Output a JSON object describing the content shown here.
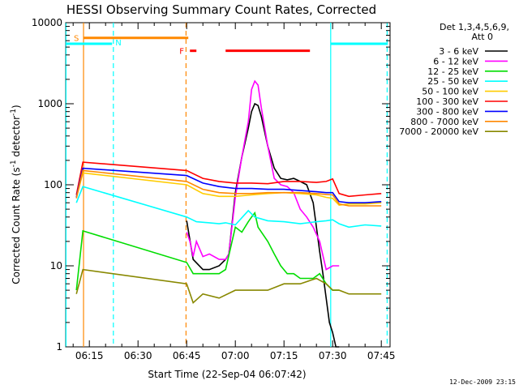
{
  "chart_data": {
    "type": "line",
    "title": "HESSI Observing Summary Count Rates, Corrected",
    "xlabel": "Start Time (22-Sep-04 06:07:42)",
    "ylabel_main": "Corrected Count Rate (s",
    "ylabel_sup1": "-1",
    "ylabel_mid": " detector",
    "ylabel_sup2": "-1",
    "ylabel_end": ")",
    "x_ticks": [
      "06:15",
      "06:30",
      "06:45",
      "07:00",
      "07:15",
      "07:30",
      "07:45"
    ],
    "x_tick_values": [
      15,
      30,
      45,
      60,
      75,
      90,
      105
    ],
    "y_ticks": [
      "1",
      "10",
      "100",
      "1000",
      "10000"
    ],
    "xlim": [
      7.7,
      107.7
    ],
    "ylim": [
      1,
      10000
    ],
    "yscale": "log",
    "legend_header_line1": "Det 1,3,4,5,6,9,",
    "legend_header_line2": "Att 0",
    "legend_position": "right",
    "timestamp": "12-Dec-2009 23:15",
    "flags": {
      "s": "S",
      "n": "N",
      "f": "F"
    },
    "series": [
      {
        "name": "3 - 6 keV",
        "color": "#000000",
        "x": [
          45,
          47,
          50,
          52,
          55,
          57,
          58,
          60,
          62,
          64,
          65,
          66,
          67,
          68,
          70,
          72,
          74,
          76,
          78,
          80,
          82,
          84,
          85,
          86,
          87,
          88,
          89,
          90,
          91,
          92
        ],
        "y": [
          36,
          12,
          9,
          9,
          10,
          12,
          14,
          80,
          220,
          500,
          800,
          1000,
          950,
          700,
          300,
          160,
          120,
          115,
          120,
          110,
          100,
          60,
          30,
          15,
          8,
          4,
          2,
          1.5,
          1,
          1
        ]
      },
      {
        "name": "6 - 12 keV",
        "color": "#ff00ff",
        "x": [
          45,
          46,
          47,
          48,
          50,
          52,
          55,
          57,
          58,
          60,
          62,
          64,
          65,
          66,
          67,
          68,
          70,
          72,
          74,
          76,
          78,
          80,
          82,
          84,
          86,
          88,
          90,
          92
        ],
        "y": [
          26,
          20,
          13,
          20,
          13,
          14,
          12,
          12,
          14,
          70,
          220,
          600,
          1500,
          1900,
          1700,
          900,
          300,
          120,
          100,
          95,
          80,
          50,
          40,
          30,
          20,
          9,
          10,
          10
        ]
      },
      {
        "name": "12 - 25 keV",
        "color": "#00dd00",
        "x": [
          11,
          13,
          45,
          47,
          50,
          55,
          57,
          60,
          62,
          64,
          65,
          66,
          67,
          70,
          72,
          74,
          76,
          78,
          80,
          84,
          86,
          88,
          90,
          92
        ],
        "y": [
          5,
          27,
          11,
          8,
          8,
          8,
          9,
          30,
          26,
          35,
          40,
          45,
          30,
          20,
          14,
          10,
          8,
          8,
          7,
          7,
          8,
          6,
          5,
          5
        ]
      },
      {
        "name": "25 - 50 keV",
        "color": "#00ffff",
        "x": [
          11,
          13,
          45,
          48,
          52,
          55,
          57,
          60,
          64,
          66,
          70,
          75,
          80,
          85,
          88,
          90,
          92,
          95,
          100,
          105
        ],
        "y": [
          60,
          95,
          40,
          35,
          34,
          33,
          34,
          32,
          48,
          40,
          36,
          35,
          33,
          35,
          36,
          37,
          33,
          30,
          32,
          31
        ]
      },
      {
        "name": "50 - 100 keV",
        "color": "#ffcc00",
        "x": [
          11,
          13,
          45,
          50,
          55,
          60,
          65,
          70,
          75,
          80,
          85,
          88,
          90,
          92,
          95,
          100,
          105
        ],
        "y": [
          70,
          140,
          100,
          78,
          72,
          72,
          75,
          78,
          80,
          78,
          75,
          70,
          68,
          56,
          58,
          58,
          60
        ]
      },
      {
        "name": "100 - 300 keV",
        "color": "#ff0000",
        "x": [
          11,
          13,
          45,
          50,
          55,
          60,
          65,
          70,
          75,
          80,
          85,
          88,
          90,
          92,
          95,
          100,
          105
        ],
        "y": [
          75,
          190,
          150,
          120,
          110,
          105,
          105,
          103,
          110,
          110,
          107,
          110,
          118,
          78,
          72,
          75,
          78
        ]
      },
      {
        "name": "300 - 800 keV",
        "color": "#0000ff",
        "x": [
          11,
          13,
          45,
          50,
          55,
          60,
          65,
          70,
          75,
          80,
          85,
          88,
          90,
          92,
          95,
          100,
          105
        ],
        "y": [
          70,
          160,
          130,
          105,
          95,
          90,
          90,
          88,
          88,
          85,
          82,
          80,
          80,
          62,
          60,
          60,
          62
        ]
      },
      {
        "name": "800 - 7000 keV",
        "color": "#ff8800",
        "x": [
          11,
          13,
          45,
          50,
          55,
          60,
          65,
          70,
          75,
          80,
          85,
          88,
          90,
          92,
          95,
          100,
          105
        ],
        "y": [
          68,
          150,
          110,
          88,
          80,
          78,
          78,
          80,
          80,
          80,
          78,
          76,
          75,
          58,
          55,
          55,
          55
        ]
      },
      {
        "name": "7000 - 20000 keV",
        "color": "#888800",
        "x": [
          11,
          13,
          45,
          47,
          50,
          55,
          60,
          65,
          70,
          75,
          80,
          85,
          88,
          90,
          92,
          95,
          100,
          105
        ],
        "y": [
          4.5,
          9,
          6,
          3.5,
          4.5,
          4,
          5,
          5,
          5,
          6,
          6,
          7,
          6,
          5,
          5,
          4.5,
          4.5,
          4.5
        ]
      }
    ],
    "annotations": {
      "saa_bar": {
        "label": "S",
        "x": [
          13.2,
          45.5
        ],
        "y": 6500,
        "color": "#ff8800"
      },
      "night_bars": [
        {
          "label": "N",
          "x": [
            7.7,
            22
          ],
          "y": 5500,
          "color": "#00ffff"
        },
        {
          "x": [
            89.5,
            107
          ],
          "y": 5500,
          "color": "#00ffff"
        }
      ],
      "flare_bars": [
        {
          "label": "F",
          "x": [
            46,
            48
          ],
          "y": 4500,
          "color": "#ff0000"
        },
        {
          "x": [
            57,
            83
          ],
          "y": 4500,
          "color": "#ff0000"
        }
      ],
      "vlines": [
        {
          "x": 7.8,
          "color": "#00ffff",
          "style": "solid"
        },
        {
          "x": 13.2,
          "color": "#ff8800",
          "style": "solid"
        },
        {
          "x": 22.4,
          "color": "#00ffff",
          "style": "dashed"
        },
        {
          "x": 44.8,
          "color": "#ff8800",
          "style": "dashed"
        },
        {
          "x": 89.4,
          "color": "#00ffff",
          "style": "solid"
        },
        {
          "x": 106.8,
          "color": "#00ffff",
          "style": "dashed"
        }
      ]
    }
  }
}
